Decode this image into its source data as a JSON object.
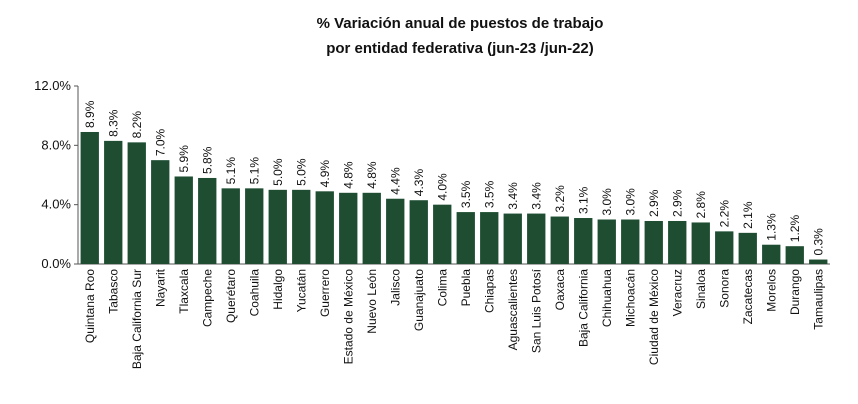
{
  "chart_data": {
    "type": "bar",
    "title": "% Variación anual de puestos de trabajo",
    "subtitle": "por entidad federativa (jun-23 /jun-22)",
    "xlabel": "",
    "ylabel": "",
    "ylim": [
      0,
      12
    ],
    "yticks": [
      0,
      4,
      8,
      12
    ],
    "ytick_labels": [
      "0.0%",
      "4.0%",
      "8.0%",
      "12.0%"
    ],
    "bar_color": "#1e4d32",
    "grid": false,
    "categories": [
      "Quintana Roo",
      "Tabasco",
      "Baja California Sur",
      "Nayarit",
      "Tlaxcala",
      "Campeche",
      "Querétaro",
      "Coahuila",
      "Hidalgo",
      "Yucatán",
      "Guerrero",
      "Estado de México",
      "Nuevo León",
      "Jalisco",
      "Guanajuato",
      "Colima",
      "Puebla",
      "Chiapas",
      "Aguascalientes",
      "San Luis Potosí",
      "Oaxaca",
      "Baja California",
      "Chihuahua",
      "Michoacán",
      "Ciudad de México",
      "Veracruz",
      "Sinaloa",
      "Sonora",
      "Zacatecas",
      "Morelos",
      "Durango",
      "Tamaulipas"
    ],
    "values": [
      8.9,
      8.3,
      8.2,
      7.0,
      5.9,
      5.8,
      5.1,
      5.1,
      5.0,
      5.0,
      4.9,
      4.8,
      4.8,
      4.4,
      4.3,
      4.0,
      3.5,
      3.5,
      3.4,
      3.4,
      3.2,
      3.1,
      3.0,
      3.0,
      2.9,
      2.9,
      2.8,
      2.2,
      2.1,
      1.3,
      1.2,
      0.3
    ],
    "value_labels": [
      "8.9%",
      "8.3%",
      "8.2%",
      "7.0%",
      "5.9%",
      "5.8%",
      "5.1%",
      "5.1%",
      "5.0%",
      "5.0%",
      "4.9%",
      "4.8%",
      "4.8%",
      "4.4%",
      "4.3%",
      "4.0%",
      "3.5%",
      "3.5%",
      "3.4%",
      "3.4%",
      "3.2%",
      "3.1%",
      "3.0%",
      "3.0%",
      "2.9%",
      "2.9%",
      "2.8%",
      "2.2%",
      "2.1%",
      "1.3%",
      "1.2%",
      "0.3%"
    ]
  }
}
